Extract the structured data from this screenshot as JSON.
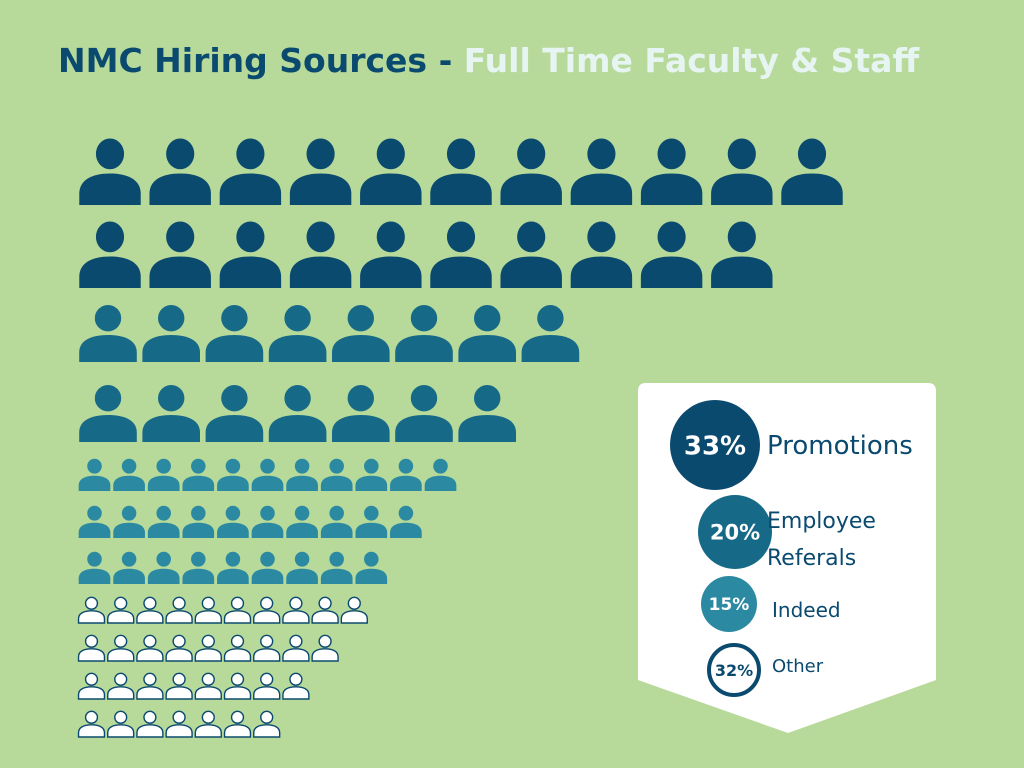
{
  "header": {
    "title_main": "NMC Hiring Sources -",
    "title_highlight": "Full Time Faculty & Staff"
  },
  "legend": {
    "items": [
      {
        "label": "Promotions",
        "value": 33,
        "value_label": "33%",
        "color": "#0b4a6f",
        "rows": [
          11,
          10
        ]
      },
      {
        "label": "Employee Referals",
        "value": 20,
        "value_label": "20%",
        "color": "#166a88",
        "rows": [
          8,
          7
        ]
      },
      {
        "label": "Indeed",
        "value": 15,
        "value_label": "15%",
        "color": "#2b8aa2",
        "rows": [
          11,
          10,
          9
        ]
      },
      {
        "label": "Other",
        "value": 32,
        "value_label": "32%",
        "color": "#ffffff",
        "rows": [
          10,
          9,
          8,
          7
        ]
      }
    ]
  }
}
